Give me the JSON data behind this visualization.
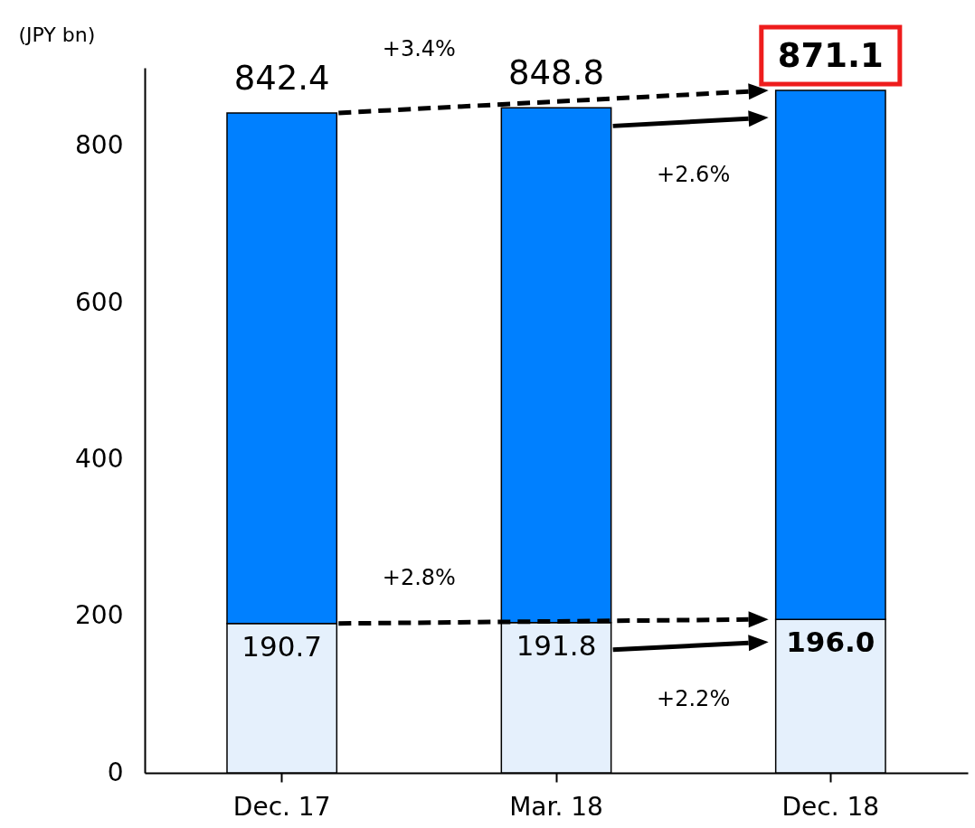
{
  "chart_data": {
    "type": "bar",
    "stacked": true,
    "ylabel": "(JPY bn)",
    "categories": [
      "Dec. 17",
      "Mar. 18",
      "Dec. 18"
    ],
    "series": [
      {
        "color": "#e5f0fc",
        "values": [
          190.7,
          191.8,
          196.0
        ],
        "value_labels": [
          "190.7",
          "191.8",
          "196.0"
        ]
      },
      {
        "color": "#0080ff",
        "values": [
          651.7,
          657.0,
          675.1
        ]
      }
    ],
    "totals": [
      "842.4",
      "848.8",
      "871.1"
    ],
    "ylim": [
      0,
      900
    ],
    "yticks": [
      0,
      200,
      400,
      600,
      800
    ],
    "grid": false,
    "legend": false,
    "annotations": [
      "+3.4%",
      "+2.6%",
      "+2.8%",
      "+2.2%"
    ]
  }
}
